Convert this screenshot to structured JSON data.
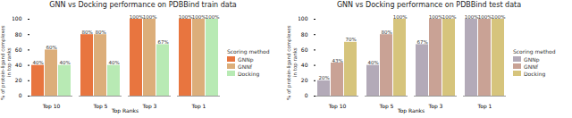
{
  "chart_data": [
    {
      "type": "bar",
      "title": "GNN vs Docking performance on PDBBind train data",
      "x_label": "Top Ranks",
      "y_label": "% of protein-ligand complexes in top ranks",
      "categories": [
        "Top 10",
        "Top 5",
        "Top 3",
        "Top 1"
      ],
      "series": [
        {
          "name": "GNNp",
          "color": "#e8753f",
          "values": [
            40,
            80,
            100,
            100
          ],
          "value_labels": [
            "40%",
            "80%",
            "100%",
            "100%"
          ]
        },
        {
          "name": "GNNf",
          "color": "#dcae7a",
          "values": [
            60,
            80,
            100,
            100
          ],
          "value_labels": [
            "60%",
            "80%",
            "100%",
            "100%"
          ]
        },
        {
          "name": "Docking",
          "color": "#b8eab4",
          "values": [
            40,
            40,
            67,
            100
          ],
          "value_labels": [
            "40%",
            "40%",
            "67%",
            "100%"
          ]
        }
      ],
      "ylim": [
        0,
        100
      ],
      "yticks": [
        0,
        20,
        40,
        60,
        80,
        100
      ],
      "data_labels": true,
      "legend": "right",
      "legend_title": "Scoring method"
    },
    {
      "type": "bar",
      "title": "GNN vs Docking performance on PDBBind test data",
      "x_label": "Top Ranks",
      "y_label": "% of protein-ligand complexes in top ranks",
      "categories": [
        "Top 10",
        "Top 5",
        "Top 3",
        "Top 1"
      ],
      "series": [
        {
          "name": "GNNp",
          "color": "#b3aab8",
          "values": [
            20,
            40,
            67,
            100
          ],
          "value_labels": [
            "20%",
            "40%",
            "67%",
            "100%"
          ]
        },
        {
          "name": "GNNf",
          "color": "#c9a295",
          "values": [
            43,
            80,
            100,
            100
          ],
          "value_labels": [
            "43%",
            "80%",
            "100%",
            "100%"
          ]
        },
        {
          "name": "Docking",
          "color": "#d6c47c",
          "values": [
            70,
            100,
            100,
            100
          ],
          "value_labels": [
            "70%",
            "100%",
            "100%",
            "100%"
          ]
        }
      ],
      "ylim": [
        0,
        100
      ],
      "yticks": [
        0,
        20,
        40,
        60,
        80,
        100
      ],
      "data_labels": true,
      "legend": "right",
      "legend_title": "Scoring method"
    }
  ]
}
